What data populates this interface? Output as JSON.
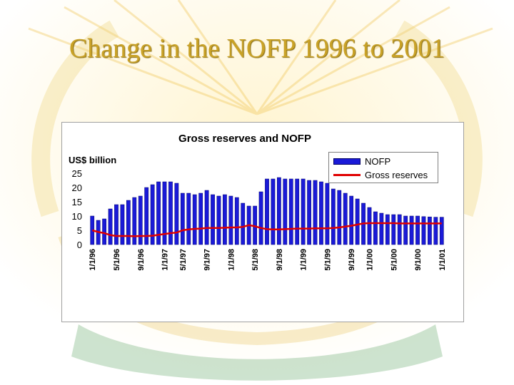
{
  "slide": {
    "title": "Change in the NOFP 1996 to 2001"
  },
  "colors": {
    "title": "#c9a227",
    "nofp_bar": "#1a1ad8",
    "gross_reserves_line": "#e00000"
  },
  "chart_data": {
    "type": "bar",
    "title": "Gross reserves and NOFP",
    "ylabel": "US$ billion",
    "ylim": [
      0,
      25
    ],
    "yticks": [
      0,
      5,
      10,
      15,
      20,
      25
    ],
    "grid": false,
    "legend_position": "top-right",
    "x_tick_labels": [
      "1/1/96",
      "5/1/96",
      "9/1/96",
      "1/1/97",
      "5/1/97",
      "9/1/97",
      "1/1/98",
      "5/1/98",
      "9/1/98",
      "1/1/99",
      "5/1/99",
      "9/1/99",
      "1/1/00",
      "5/1/00",
      "9/1/00",
      "1/1/01"
    ],
    "series": [
      {
        "name": "NOFP",
        "type": "bar",
        "values": [
          10,
          8.5,
          9,
          12.5,
          14,
          14,
          15.5,
          16.5,
          17,
          20,
          21,
          22,
          22,
          22,
          21.5,
          18,
          18,
          17.5,
          18,
          19,
          17.5,
          17,
          17.5,
          17,
          16.5,
          14.5,
          13.5,
          13.5,
          18.5,
          23,
          23,
          23.5,
          23,
          23,
          23,
          23,
          22.5,
          22.5,
          22,
          21.5,
          19.5,
          19,
          18,
          17,
          16,
          14.5,
          13,
          11.5,
          11,
          10.5,
          10.5,
          10.5,
          10,
          10,
          10,
          9.8,
          9.7,
          9.6,
          9.6
        ]
      },
      {
        "name": "Gross reserves",
        "type": "line",
        "values": [
          5,
          4.4,
          4,
          3.3,
          3,
          3,
          3,
          2.9,
          3,
          3,
          3.1,
          3.4,
          3.7,
          4,
          4.2,
          5,
          5.3,
          5.5,
          5.6,
          5.8,
          5.8,
          5.8,
          5.9,
          6,
          6,
          6.2,
          6.8,
          6.4,
          5.8,
          5.4,
          5.3,
          5.3,
          5.4,
          5.5,
          5.6,
          5.6,
          5.6,
          5.7,
          5.7,
          5.7,
          5.8,
          6,
          6.3,
          6.6,
          7,
          7.4,
          7.5,
          7.5,
          7.5,
          7.5,
          7.5,
          7.4,
          7.4,
          7.4,
          7.4,
          7.4,
          7.4,
          7.4,
          7.4
        ]
      }
    ]
  }
}
